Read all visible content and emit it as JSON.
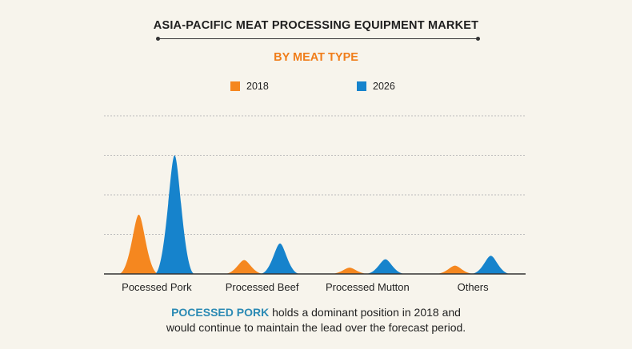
{
  "title": "ASIA-PACIFIC MEAT PROCESSING EQUIPMENT MARKET",
  "subtitle": "BY MEAT TYPE",
  "colors": {
    "series_2018": "#f5871f",
    "series_2026": "#1683cc",
    "subtitle": "#f07d1a",
    "highlight": "#2b8ab4",
    "grid": "#bdbdbd",
    "axis": "#333333"
  },
  "chart_data": {
    "type": "area",
    "categories": [
      "Pocessed Pork",
      "Processed Beef",
      "Processed Mutton",
      "Others"
    ],
    "series": [
      {
        "name": "2018",
        "values": [
          1.5,
          0.35,
          0.16,
          0.21
        ]
      },
      {
        "name": "2026",
        "values": [
          3.0,
          0.77,
          0.37,
          0.46
        ]
      }
    ],
    "ylim": [
      0,
      4
    ],
    "grid": true,
    "y_tick_labels": false,
    "legend_position": "top-center"
  },
  "caption": {
    "highlight": "POCESSED PORK",
    "line1_rest": " holds a dominant position in 2018 and",
    "line2": "would continue to maintain the lead over the forecast period."
  }
}
